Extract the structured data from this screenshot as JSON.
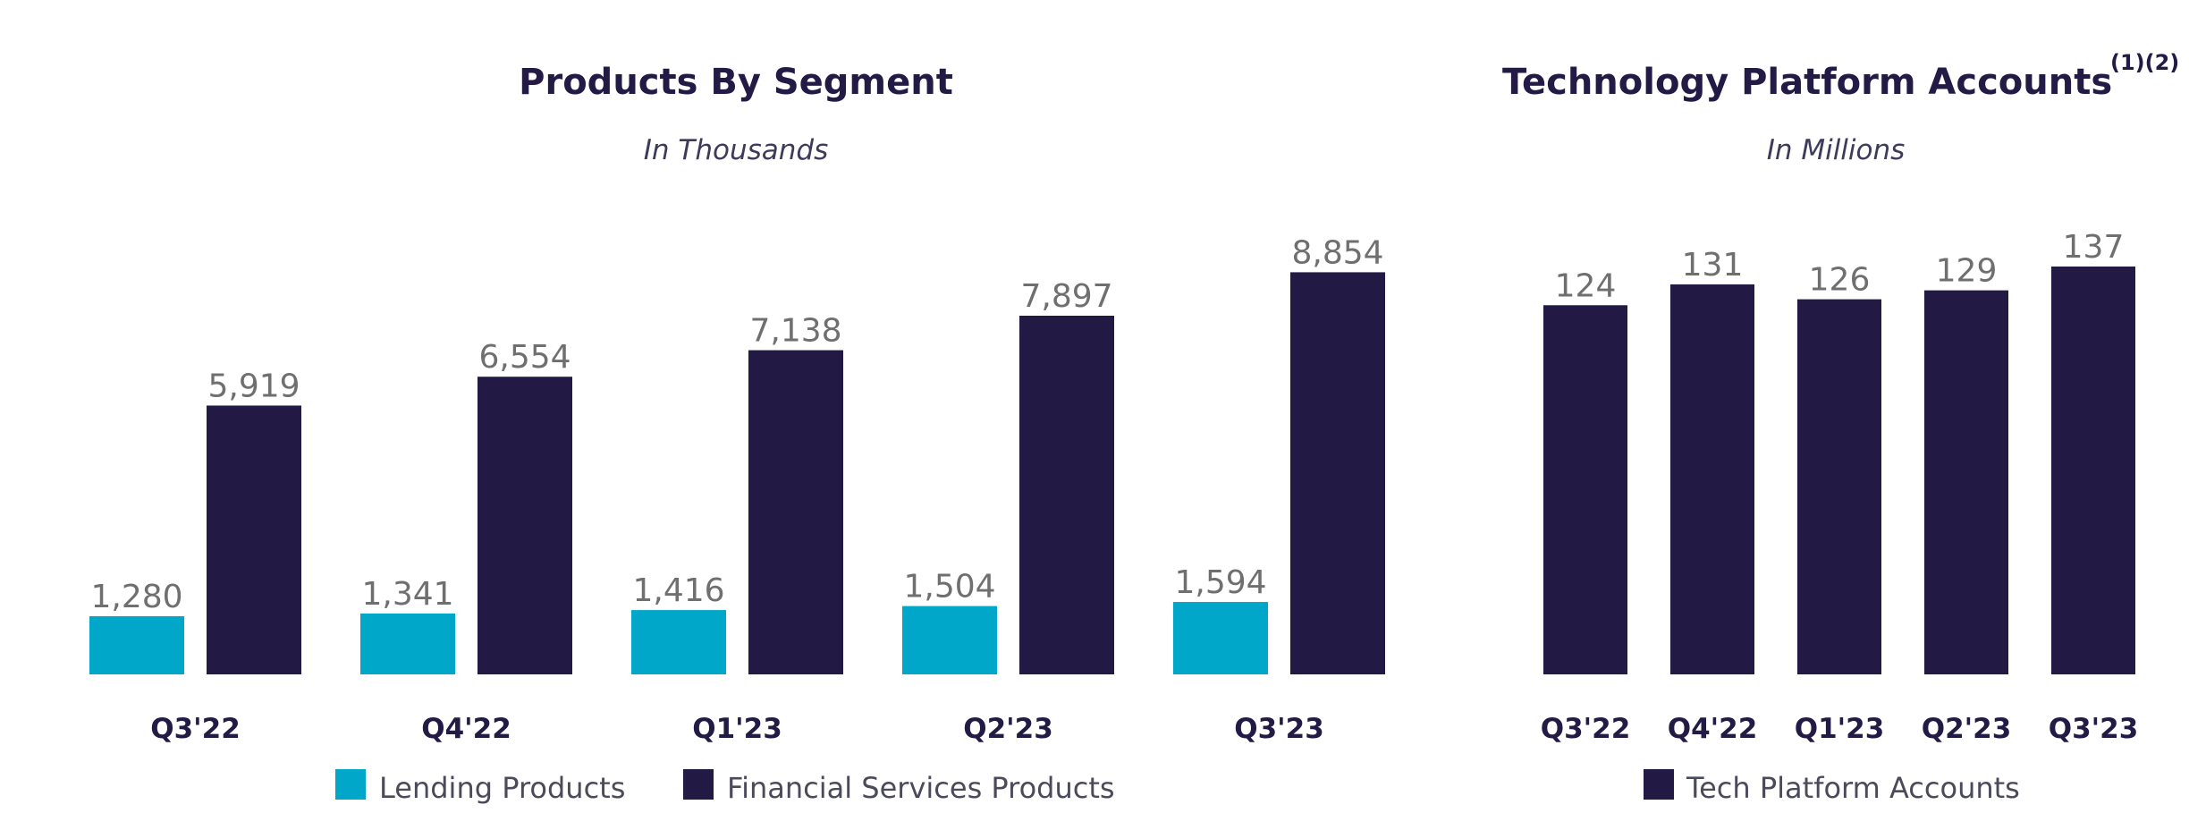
{
  "chart_data": [
    {
      "type": "bar",
      "title": "Products By Segment",
      "subtitle": "In Thousands",
      "categories": [
        "Q3'22",
        "Q4'22",
        "Q1'23",
        "Q2'23",
        "Q3'23"
      ],
      "series": [
        {
          "name": "Lending Products",
          "color": "#00a7c8",
          "values": [
            1280,
            1341,
            1416,
            1504,
            1594
          ],
          "labels": [
            "1,280",
            "1,341",
            "1,416",
            "1,504",
            "1,594"
          ]
        },
        {
          "name": "Financial Services Products",
          "color": "#221a45",
          "values": [
            5919,
            6554,
            7138,
            7897,
            8854
          ],
          "labels": [
            "5,919",
            "6,554",
            "7,138",
            "7,897",
            "8,854"
          ]
        }
      ],
      "ylim": [
        0,
        9000
      ],
      "grid": false,
      "legend": "bottom"
    },
    {
      "type": "bar",
      "title": "Technology Platform Accounts",
      "title_superscript": "(1)(2)",
      "subtitle": "In Millions",
      "categories": [
        "Q3'22",
        "Q4'22",
        "Q1'23",
        "Q2'23",
        "Q3'23"
      ],
      "series": [
        {
          "name": "Tech Platform Accounts",
          "color": "#221a45",
          "values": [
            124,
            131,
            126,
            129,
            137
          ],
          "labels": [
            "124",
            "131",
            "126",
            "129",
            "137"
          ]
        }
      ],
      "ylim": [
        0,
        137
      ],
      "grid": false,
      "legend": "bottom"
    }
  ]
}
